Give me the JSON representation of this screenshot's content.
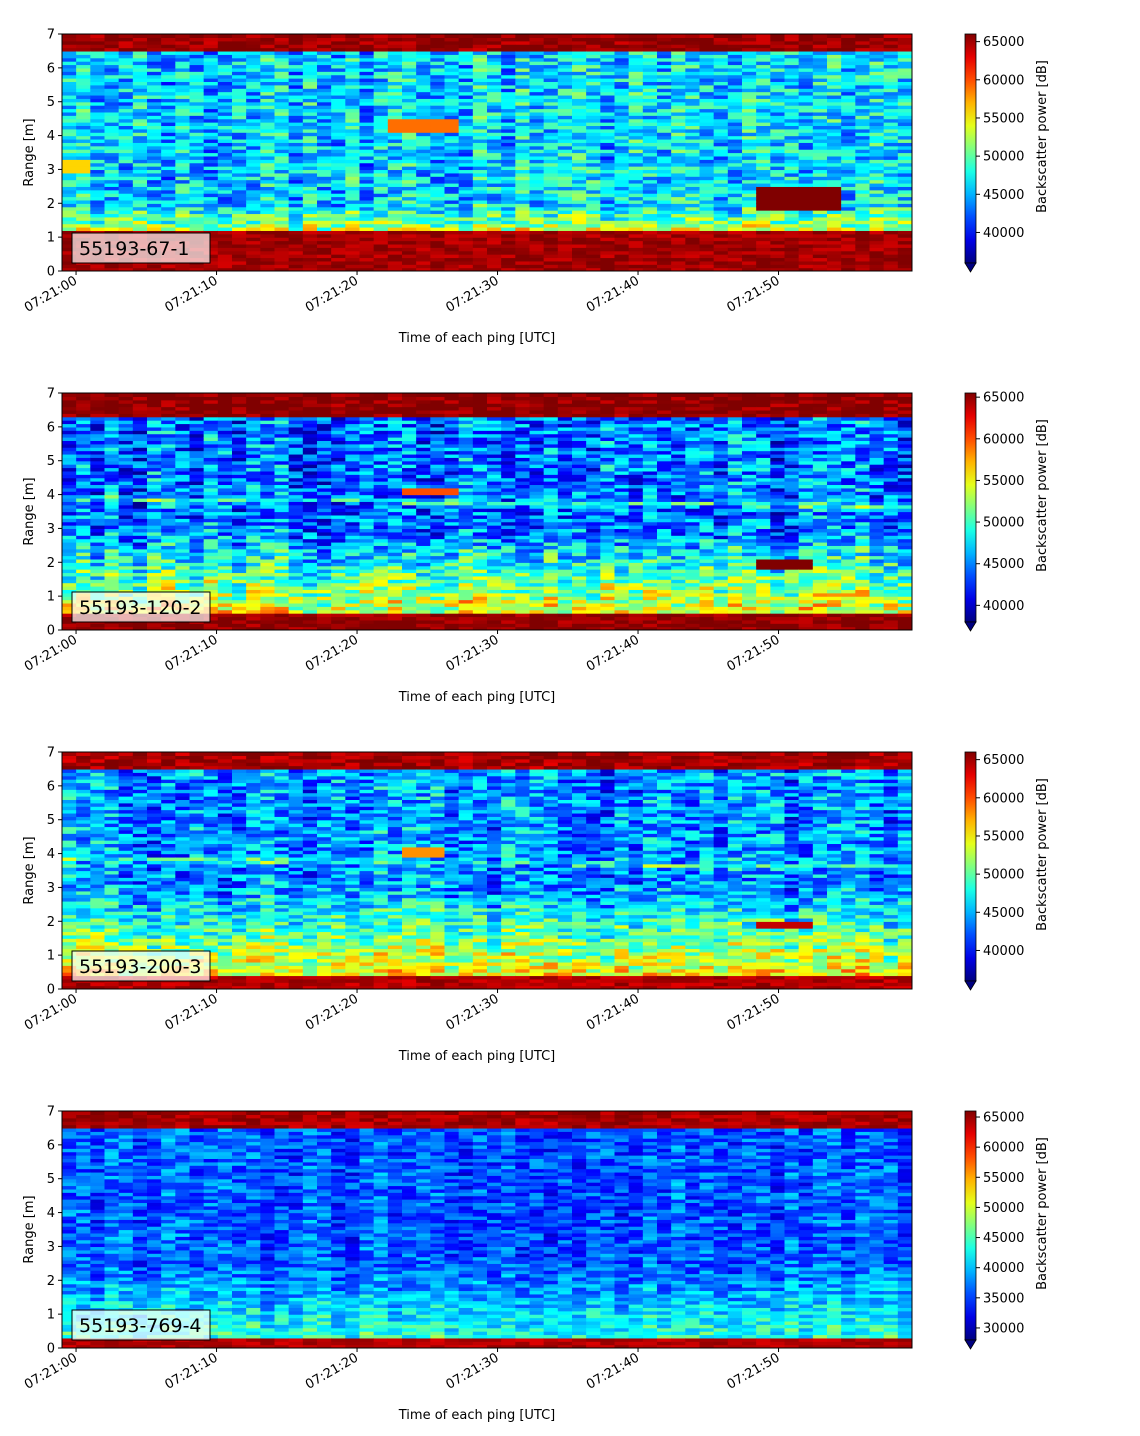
{
  "chart_data": [
    {
      "type": "heatmap",
      "label": "55193-67-1",
      "xlabel": "Time of each ping [UTC]",
      "ylabel": "Range [m]",
      "xticks": [
        "07:21:00",
        "07:21:10",
        "07:21:20",
        "07:21:30",
        "07:21:40",
        "07:21:50"
      ],
      "xlim_seconds": [
        -1,
        59.5
      ],
      "yticks": [
        0,
        1,
        2,
        3,
        4,
        5,
        6,
        7
      ],
      "ylim": [
        0,
        7
      ],
      "colorbar": {
        "label": "Backscatter power [dB]",
        "vmin": 36000,
        "vmax": 66000,
        "ticks": [
          40000,
          45000,
          50000,
          55000,
          60000,
          65000
        ]
      },
      "colormap": "jet",
      "features": {
        "surface_band_top_m": 1.2,
        "surface_level": 65000,
        "top_band_from_m": 6.5,
        "mid_level": 46000,
        "noise": 4500,
        "bottom_gradient_to_m": 2.0,
        "bottom_gradient_level": 53000,
        "layer_m": 0,
        "targets": [
          {
            "t0": 22.5,
            "t1": 26.5,
            "r0": 4.1,
            "r1": 4.45,
            "level": 59000
          },
          {
            "t0": 48.5,
            "t1": 53.5,
            "r0": 1.85,
            "r1": 2.45,
            "level": 66000
          },
          {
            "t0": -1,
            "t1": 0.5,
            "r0": 2.9,
            "r1": 3.3,
            "level": 56000
          }
        ]
      }
    },
    {
      "type": "heatmap",
      "label": "55193-120-2",
      "xlabel": "Time of each ping [UTC]",
      "ylabel": "Range [m]",
      "xticks": [
        "07:21:00",
        "07:21:10",
        "07:21:20",
        "07:21:30",
        "07:21:40",
        "07:21:50"
      ],
      "xlim_seconds": [
        -1,
        59.5
      ],
      "yticks": [
        0,
        1,
        2,
        3,
        4,
        5,
        6,
        7
      ],
      "ylim": [
        0,
        7
      ],
      "colorbar": {
        "label": "Backscatter power [dB]",
        "vmin": 38000,
        "vmax": 65500,
        "ticks": [
          40000,
          45000,
          50000,
          55000,
          60000,
          65000
        ]
      },
      "colormap": "jet",
      "features": {
        "surface_band_top_m": 0.55,
        "surface_level": 65000,
        "top_band_from_m": 6.35,
        "mid_level": 44500,
        "noise": 4500,
        "bottom_gradient_to_m": 3.0,
        "bottom_gradient_level": 55000,
        "layer_m": 3.9,
        "targets": [
          {
            "t0": 23,
            "t1": 26.5,
            "r0": 4.0,
            "r1": 4.2,
            "level": 60000
          },
          {
            "t0": 48,
            "t1": 52,
            "r0": 1.8,
            "r1": 2.05,
            "level": 65500
          }
        ]
      }
    },
    {
      "type": "heatmap",
      "label": "55193-200-3",
      "xlabel": "Time of each ping [UTC]",
      "ylabel": "Range [m]",
      "xticks": [
        "07:21:00",
        "07:21:10",
        "07:21:20",
        "07:21:30",
        "07:21:40",
        "07:21:50"
      ],
      "xlim_seconds": [
        -1,
        59.5
      ],
      "yticks": [
        0,
        1,
        2,
        3,
        4,
        5,
        6,
        7
      ],
      "ylim": [
        0,
        7
      ],
      "colorbar": {
        "label": "Backscatter power [dB]",
        "vmin": 36000,
        "vmax": 66000,
        "ticks": [
          40000,
          45000,
          50000,
          55000,
          60000,
          65000
        ]
      },
      "colormap": "jet",
      "features": {
        "surface_band_top_m": 0.45,
        "surface_level": 64500,
        "top_band_from_m": 6.45,
        "mid_level": 44000,
        "noise": 4500,
        "bottom_gradient_to_m": 3.0,
        "bottom_gradient_level": 55000,
        "layer_m": 3.85,
        "targets": [
          {
            "t0": 23,
            "t1": 26,
            "r0": 3.95,
            "r1": 4.15,
            "level": 58000
          },
          {
            "t0": 48,
            "t1": 52,
            "r0": 1.8,
            "r1": 2.0,
            "level": 64000
          }
        ]
      }
    },
    {
      "type": "heatmap",
      "label": "55193-769-4",
      "xlabel": "Time of each ping [UTC]",
      "ylabel": "Range [m]",
      "xticks": [
        "07:21:00",
        "07:21:10",
        "07:21:20",
        "07:21:30",
        "07:21:40",
        "07:21:50"
      ],
      "xlim_seconds": [
        -1,
        59.5
      ],
      "yticks": [
        0,
        1,
        2,
        3,
        4,
        5,
        6,
        7
      ],
      "ylim": [
        0,
        7
      ],
      "colorbar": {
        "label": "Backscatter power [dB]",
        "vmin": 28000,
        "vmax": 66000,
        "ticks": [
          30000,
          35000,
          40000,
          45000,
          50000,
          55000,
          60000,
          65000
        ]
      },
      "colormap": "jet",
      "features": {
        "surface_band_top_m": 0.3,
        "surface_level": 64000,
        "top_band_from_m": 6.5,
        "mid_level": 36000,
        "noise": 4000,
        "bottom_gradient_to_m": 2.5,
        "bottom_gradient_level": 44000,
        "layer_m": 0,
        "targets": []
      }
    }
  ]
}
